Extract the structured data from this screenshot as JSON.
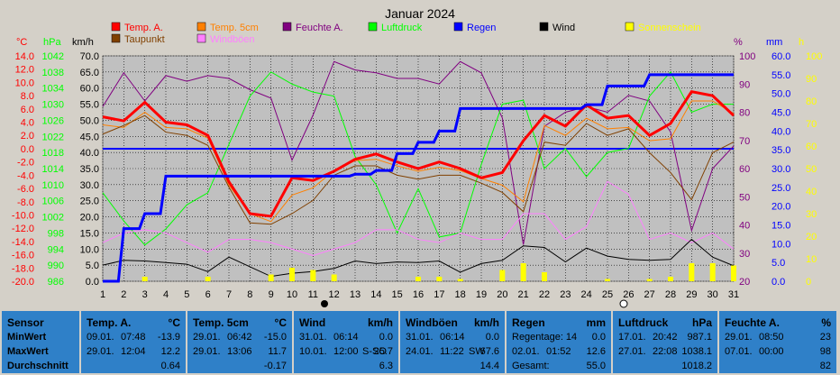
{
  "chart_data": {
    "type": "line",
    "title": "Januar 2024",
    "x": [
      1,
      2,
      3,
      4,
      5,
      6,
      7,
      8,
      9,
      10,
      11,
      12,
      13,
      14,
      15,
      16,
      17,
      18,
      19,
      20,
      21,
      22,
      23,
      24,
      25,
      26,
      27,
      28,
      29,
      30,
      31
    ],
    "axes": {
      "temp": {
        "label": "°C",
        "ticks": [
          "14.0",
          "12.0",
          "10.0",
          "8.0",
          "6.0",
          "4.0",
          "2.0",
          "0.0",
          "-2.0",
          "-4.0",
          "-6.0",
          "-8.0",
          "-10.0",
          "-12.0",
          "-14.0",
          "-16.0",
          "-18.0",
          "-20.0"
        ],
        "range": [
          -20,
          14
        ]
      },
      "press": {
        "label": "hPa",
        "ticks": [
          "1042",
          "1038",
          "1034",
          "1030",
          "1026",
          "1022",
          "1018",
          "1014",
          "1010",
          "1006",
          "1002",
          "998",
          "994",
          "990",
          "986"
        ],
        "range": [
          986,
          1042
        ]
      },
      "wind": {
        "label": "km/h",
        "ticks": [
          "70.0",
          "65.0",
          "60.0",
          "55.0",
          "50.0",
          "45.0",
          "40.0",
          "35.0",
          "30.0",
          "25.0",
          "20.0",
          "15.0",
          "10.0",
          "5.0",
          "0.0"
        ],
        "range": [
          0,
          70
        ]
      },
      "hum": {
        "label": "%",
        "ticks": [
          "100",
          "90",
          "80",
          "70",
          "60",
          "50",
          "40",
          "30",
          "20"
        ],
        "range": [
          20,
          100
        ]
      },
      "rain": {
        "label": "mm",
        "ticks": [
          "60.0",
          "55.0",
          "50.0",
          "45.0",
          "40.0",
          "35.0",
          "30.0",
          "25.0",
          "20.0",
          "15.0",
          "10.0",
          "5.0",
          "0.0"
        ],
        "range": [
          0,
          60
        ]
      },
      "sun": {
        "label": "h",
        "ticks": [
          "100",
          "90",
          "80",
          "70",
          "60",
          "50",
          "40",
          "30",
          "20",
          "10",
          "0"
        ],
        "range": [
          0,
          100
        ]
      }
    },
    "legend": [
      {
        "name": "Temp. A.",
        "color": "#ff0000"
      },
      {
        "name": "Taupunkt",
        "color": "#804000"
      },
      {
        "name": "Temp. 5cm",
        "color": "#ff8000"
      },
      {
        "name": "Windböen",
        "color": "#ff80ff"
      },
      {
        "name": "Feuchte A.",
        "color": "#800080"
      },
      {
        "name": "Luftdruck",
        "color": "#00ff00"
      },
      {
        "name": "Regen",
        "color": "#0000ff"
      },
      {
        "name": "Wind",
        "color": "#000000"
      },
      {
        "name": "Sonnenschein",
        "color": "#ffff00"
      }
    ],
    "series": [
      {
        "name": "Feuchte A.",
        "axis": "hum",
        "color": "#800080",
        "values": [
          82,
          94,
          84,
          93,
          91,
          93,
          92,
          88,
          85,
          63,
          79,
          98,
          95,
          94,
          92,
          92,
          90,
          98,
          94,
          78,
          33,
          75,
          80,
          82,
          80,
          86,
          84,
          73,
          38,
          60,
          68
        ]
      },
      {
        "name": "Luftdruck",
        "axis": "press",
        "color": "#00ff00",
        "values": [
          1008,
          1001,
          995,
          999,
          1005,
          1008,
          1020,
          1032,
          1038,
          1035,
          1033,
          1032,
          1017,
          1010,
          998,
          1009,
          997,
          998,
          1015,
          1030,
          1031,
          1014,
          1019,
          1012,
          1018,
          1019,
          1032,
          1038,
          1028,
          1030,
          1030
        ]
      },
      {
        "name": "Windböen",
        "axis": "wind",
        "color": "#ff80ff",
        "values": [
          12,
          15,
          16,
          15,
          12,
          9,
          13,
          13,
          12,
          10,
          8,
          10,
          12,
          16,
          16,
          13,
          12,
          15,
          13,
          13,
          21,
          21,
          13,
          17,
          31,
          27,
          13,
          15,
          12,
          15,
          10
        ]
      },
      {
        "name": "Temp. 5cm",
        "axis": "temp",
        "color": "#ff8000",
        "values": [
          3.6,
          3.2,
          5.5,
          3.2,
          3.0,
          1.6,
          -5.5,
          -9.8,
          -11.0,
          -7.0,
          -5.9,
          -3.3,
          -1.8,
          -1.6,
          -2.6,
          -3.4,
          -2.8,
          -3.3,
          -4.5,
          -5.5,
          -8.0,
          3.5,
          2.0,
          4.6,
          3.0,
          3.2,
          1.2,
          1.5,
          7.2,
          7.2,
          5.3
        ]
      },
      {
        "name": "Taupunkt",
        "axis": "temp",
        "color": "#804000",
        "values": [
          2.2,
          3.5,
          5.0,
          2.5,
          2.0,
          0.5,
          -5.8,
          -11.2,
          -11.4,
          -9.8,
          -7.8,
          -4.0,
          -2.6,
          -2.6,
          -4.0,
          -4.6,
          -4.0,
          -4.0,
          -5.2,
          -6.6,
          -9.5,
          1.0,
          0.5,
          3.8,
          2.0,
          3.0,
          -0.6,
          -3.6,
          -7.7,
          -0.6,
          1.0
        ]
      },
      {
        "name": "Temp. A.",
        "axis": "temp",
        "color": "#ff0000",
        "values": [
          4.8,
          4.2,
          7.0,
          4.0,
          3.6,
          2.0,
          -5.0,
          -9.8,
          -10.2,
          -4.4,
          -4.8,
          -3.4,
          -1.6,
          -0.8,
          -2.0,
          -3.0,
          -2.0,
          -3.0,
          -4.4,
          -3.6,
          1.2,
          5.0,
          3.4,
          6.6,
          4.6,
          5.0,
          2.0,
          3.8,
          8.6,
          8.0,
          5.0
        ]
      },
      {
        "name": "Wind",
        "axis": "wind",
        "color": "#000000",
        "values": [
          5.0,
          6.5,
          6.3,
          5.8,
          5.3,
          3.0,
          7.5,
          4.5,
          1.5,
          2.5,
          3.0,
          4.0,
          6.3,
          5.5,
          6.0,
          5.8,
          6.3,
          2.8,
          5.5,
          6.5,
          11.0,
          10.5,
          6.0,
          10.3,
          7.8,
          6.8,
          6.5,
          6.8,
          13.0,
          7.5,
          4.8
        ]
      },
      {
        "name": "Regen",
        "axis": "rain",
        "color": "#0000ff",
        "values": [
          0.0,
          14.0,
          18.0,
          28.0,
          28.0,
          28.0,
          28.0,
          28.0,
          28.0,
          28.0,
          28.0,
          28.0,
          28.5,
          29.5,
          34.0,
          37.0,
          40.0,
          46.0,
          46.0,
          46.0,
          46.0,
          46.0,
          46.0,
          47.0,
          52.0,
          52.0,
          55.0,
          55.0,
          55.0,
          55.0,
          55.0
        ]
      },
      {
        "name": "Sonnenschein",
        "axis": "sun",
        "color": "#ffff00",
        "values": [
          0,
          0,
          2,
          0,
          0,
          2,
          0,
          0,
          3,
          6,
          5,
          3,
          0,
          0,
          0,
          2,
          2,
          1,
          0,
          5,
          8,
          4,
          0,
          0,
          1,
          0,
          1,
          2,
          8,
          8,
          7
        ]
      }
    ]
  },
  "panels": [
    {
      "title": "Sensor",
      "unit": "",
      "rows": [
        [
          "MinWert"
        ],
        [
          "MaxWert"
        ],
        [
          "Durchschnitt"
        ]
      ]
    },
    {
      "title": "Temp. A.",
      "unit": "°C",
      "rows": [
        [
          "09.01.",
          "07:48",
          "",
          "-13.9"
        ],
        [
          "29.01.",
          "12:04",
          "",
          "12.2"
        ],
        [
          "",
          "",
          "",
          "0.64"
        ]
      ]
    },
    {
      "title": "Temp. 5cm",
      "unit": "°C",
      "rows": [
        [
          "29.01.",
          "06:42",
          "",
          "-15.0"
        ],
        [
          "29.01.",
          "13:06",
          "",
          "11.7"
        ],
        [
          "",
          "",
          "",
          "-0.17"
        ]
      ]
    },
    {
      "title": "Wind",
      "unit": "km/h",
      "rows": [
        [
          "31.01.",
          "06:14",
          "",
          "0.0"
        ],
        [
          "10.01.",
          "12:00",
          "S-SO",
          "25.7"
        ],
        [
          "",
          "",
          "",
          "6.3"
        ]
      ]
    },
    {
      "title": "Windböen",
      "unit": "km/h",
      "rows": [
        [
          "31.01.",
          "06:14",
          "",
          "0.0"
        ],
        [
          "24.01.",
          "11:22",
          "SW",
          "67.6"
        ],
        [
          "",
          "",
          "",
          "14.4"
        ]
      ]
    },
    {
      "title": "Regen",
      "unit": "mm",
      "rows": [
        [
          "Regentage: 14",
          "",
          "",
          "0.0"
        ],
        [
          "02.01.",
          "01:52",
          "",
          "12.6"
        ],
        [
          "Gesamt:",
          "",
          "",
          "55.0"
        ]
      ]
    },
    {
      "title": "Luftdruck",
      "unit": "hPa",
      "rows": [
        [
          "17.01.",
          "20:42",
          "",
          "987.1"
        ],
        [
          "27.01.",
          "22:08",
          "",
          "1038.1"
        ],
        [
          "",
          "",
          "",
          "1018.2"
        ]
      ]
    },
    {
      "title": "Feuchte A.",
      "unit": "%",
      "rows": [
        [
          "29.01.",
          "08:50",
          "",
          "23"
        ],
        [
          "07.01.",
          "00:00",
          "",
          "98"
        ],
        [
          "",
          "",
          "",
          "82"
        ]
      ]
    }
  ]
}
